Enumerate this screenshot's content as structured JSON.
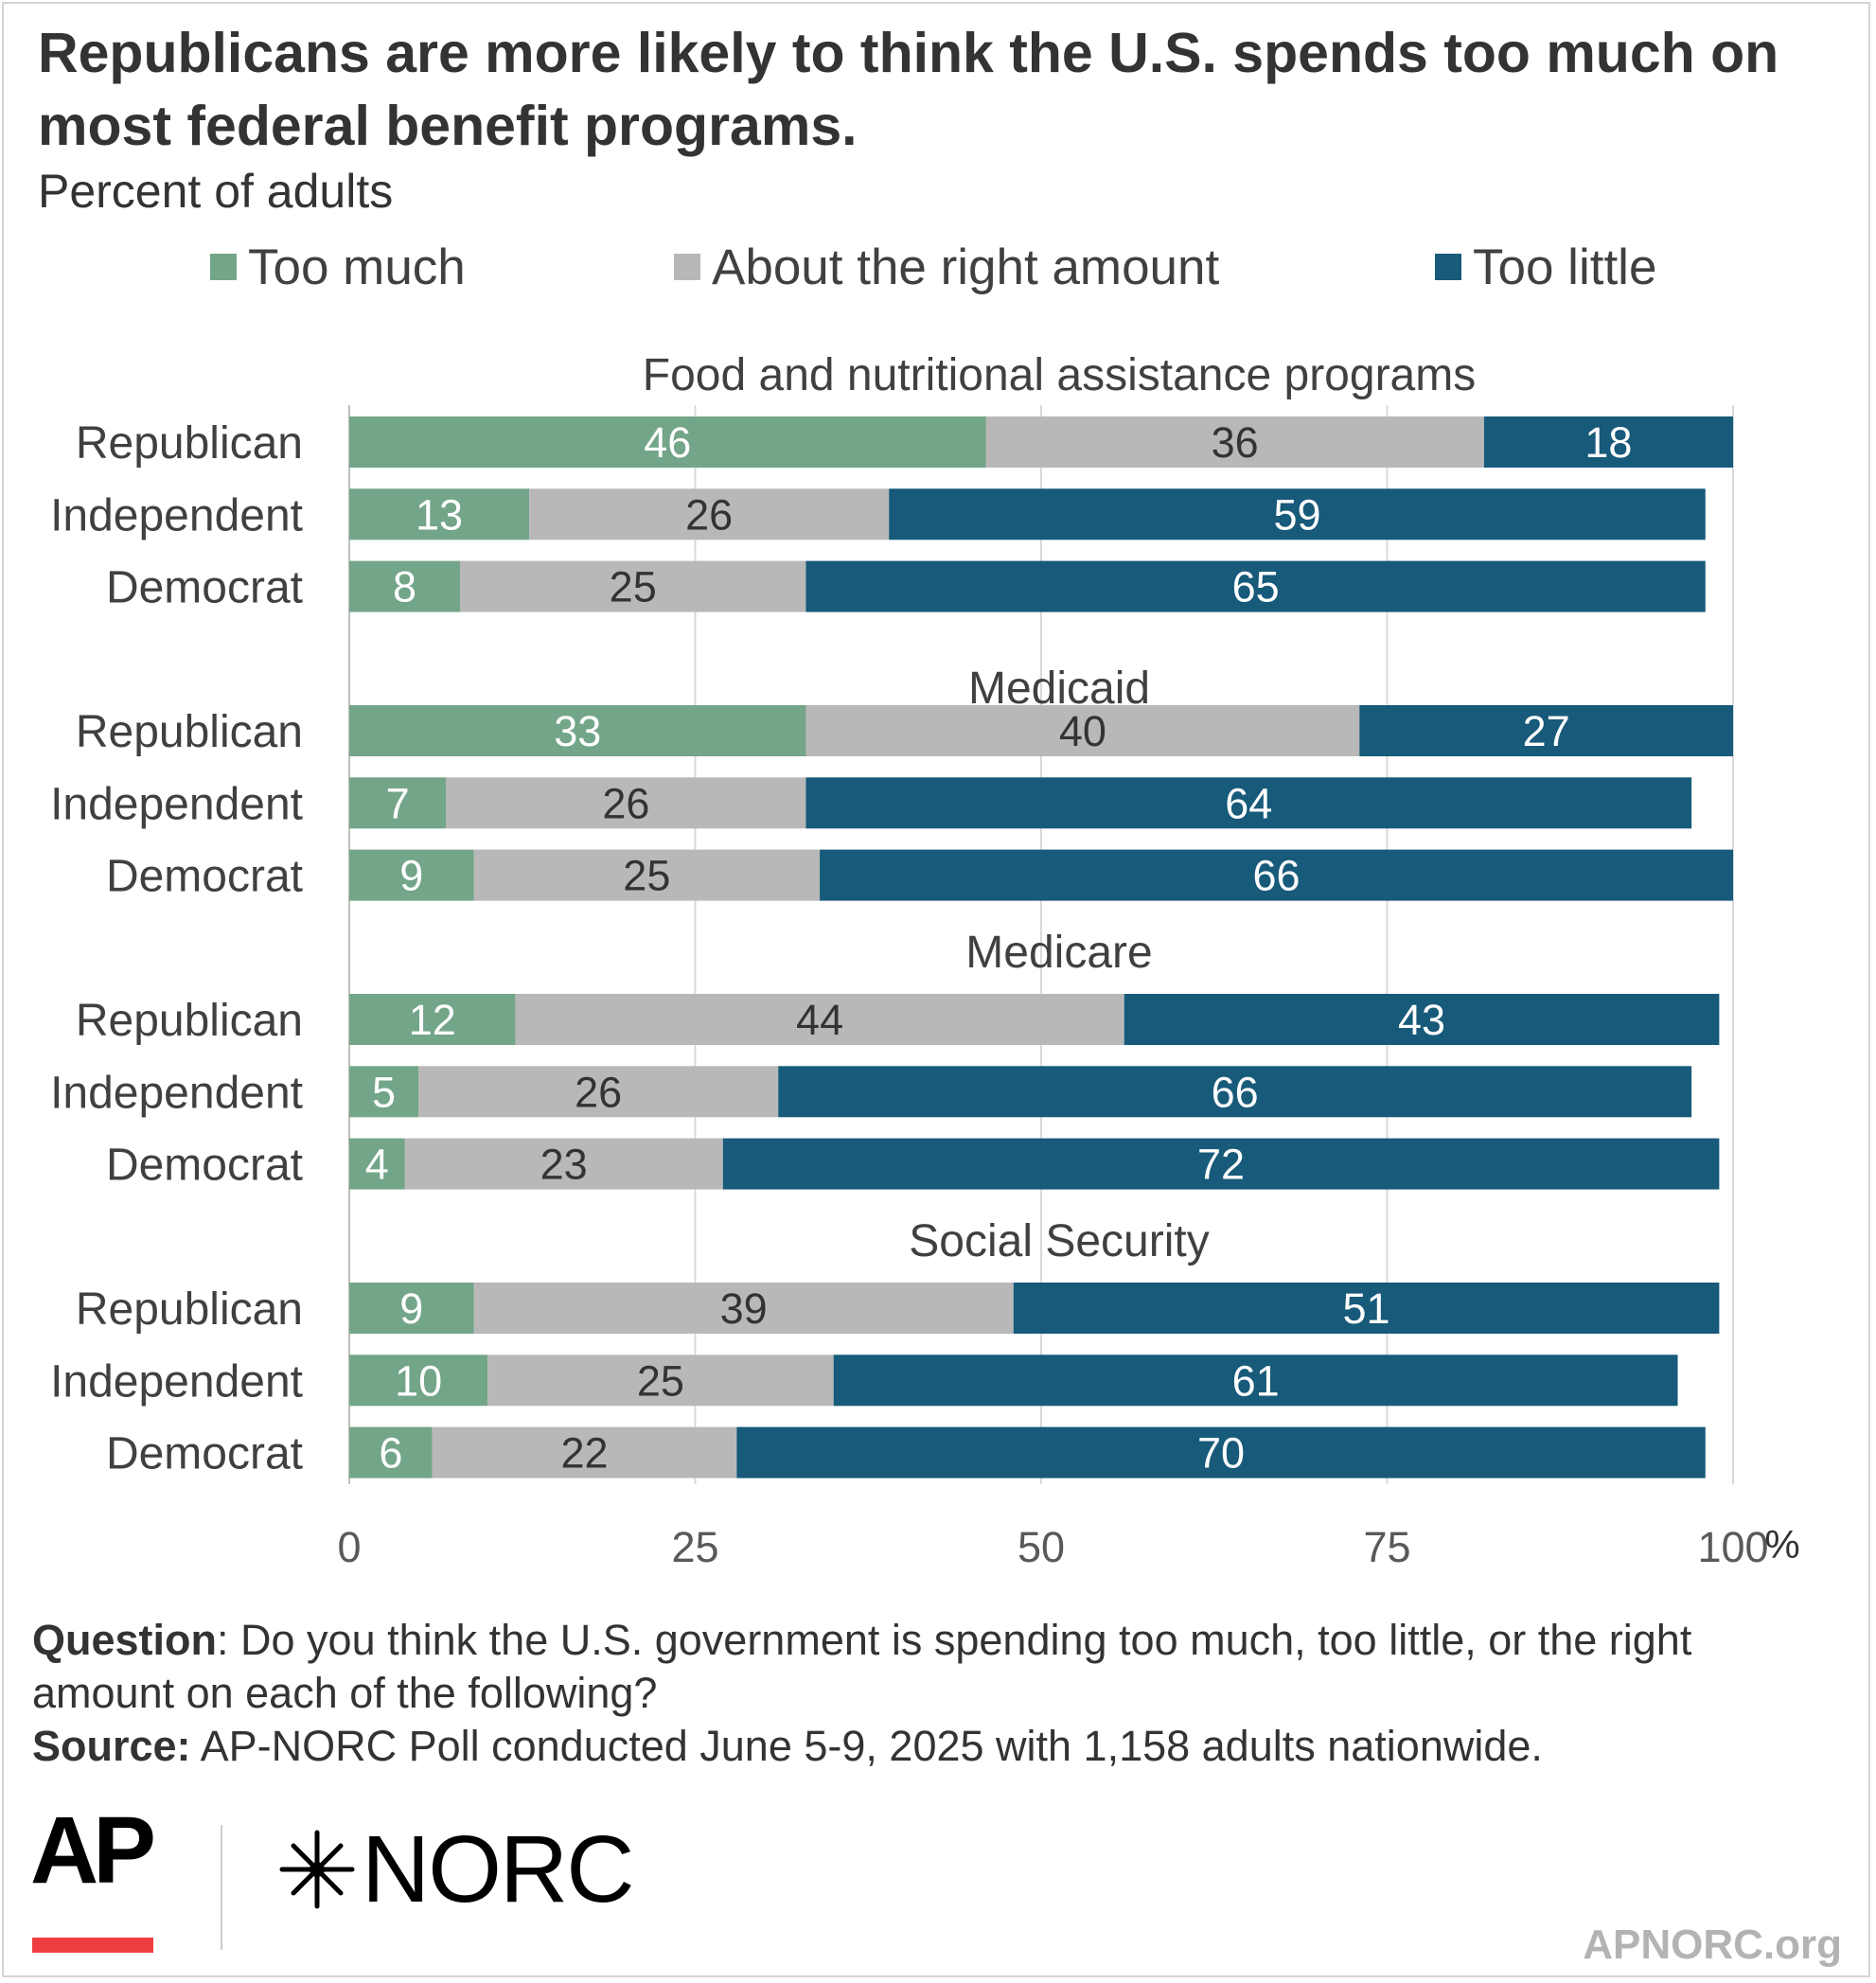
{
  "title": "Republicans are more likely to think the U.S. spends too much on most federal benefit programs.",
  "subtitle": "Percent of adults",
  "colors": {
    "too_much": "#73a589",
    "about_right": "#b8b8b8",
    "too_little": "#175a7a"
  },
  "legend": {
    "too_much": "Too much",
    "about_right": "About the right amount",
    "too_little": "Too little"
  },
  "chart_data": {
    "type": "bar",
    "orientation": "horizontal",
    "stacked": true,
    "xlim": [
      0,
      100
    ],
    "xticks": [
      "0",
      "25",
      "50",
      "75",
      "100"
    ],
    "xunit": "%",
    "grid": true,
    "legend_position": "top",
    "series_keys": [
      "too_much",
      "about_right",
      "too_little"
    ],
    "groups": [
      {
        "title": "Food and nutritional assistance programs",
        "rows": [
          {
            "label": "Republican",
            "values": [
              46,
              36,
              18
            ]
          },
          {
            "label": "Independent",
            "values": [
              13,
              26,
              59
            ]
          },
          {
            "label": "Democrat",
            "values": [
              8,
              25,
              65
            ]
          }
        ]
      },
      {
        "title": "Medicaid",
        "rows": [
          {
            "label": "Republican",
            "values": [
              33,
              40,
              27
            ]
          },
          {
            "label": "Independent",
            "values": [
              7,
              26,
              64
            ]
          },
          {
            "label": "Democrat",
            "values": [
              9,
              25,
              66
            ]
          }
        ]
      },
      {
        "title": "Medicare",
        "rows": [
          {
            "label": "Republican",
            "values": [
              12,
              44,
              43
            ]
          },
          {
            "label": "Independent",
            "values": [
              5,
              26,
              66
            ]
          },
          {
            "label": "Democrat",
            "values": [
              4,
              23,
              72
            ]
          }
        ]
      },
      {
        "title": "Social Security",
        "rows": [
          {
            "label": "Republican",
            "values": [
              9,
              39,
              51
            ]
          },
          {
            "label": "Independent",
            "values": [
              10,
              25,
              61
            ]
          },
          {
            "label": "Democrat",
            "values": [
              6,
              22,
              70
            ]
          }
        ]
      }
    ]
  },
  "footer": {
    "question_label": "Question",
    "question_text": ": Do you think the U.S. government is spending too much, too little, or the right amount on each of the following?",
    "source_label": "Source:",
    "source_text": " AP-NORC Poll conducted June 5-9, 2025 with 1,158 adults nationwide."
  },
  "logos": {
    "ap": "AP",
    "norc": "NORC",
    "norc_icon": "norc-star-icon",
    "site": "APNORC.org"
  }
}
